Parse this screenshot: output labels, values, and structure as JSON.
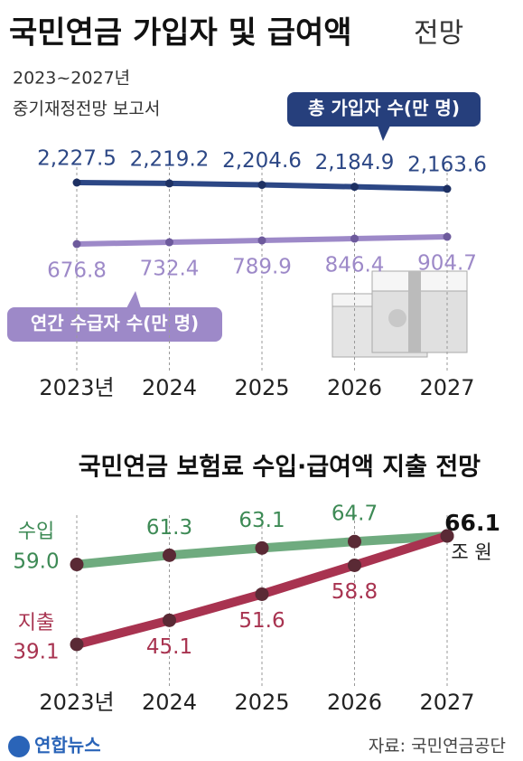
{
  "header": {
    "title": "국민연금 가입자 및 급여액",
    "title_suffix": "전망",
    "subtitle": [
      "2023~2027년",
      "중기재정전망 보고서"
    ]
  },
  "chart_data": [
    {
      "type": "line",
      "categories": [
        "2023년",
        "2024",
        "2025",
        "2026",
        "2027"
      ],
      "series": [
        {
          "name": "총 가입자 수(만 명)",
          "color": "#2c4785",
          "values": [
            2227.5,
            2219.2,
            2204.6,
            2184.9,
            2163.6
          ],
          "value_labels": [
            "2,227.5",
            "2,219.2",
            "2,204.6",
            "2,184.9",
            "2,163.6"
          ]
        },
        {
          "name": "연간 수급자 수(만 명)",
          "color": "#9d89c8",
          "values": [
            676.8,
            732.4,
            789.9,
            846.4,
            904.7
          ]
        }
      ]
    },
    {
      "type": "line",
      "title": "국민연금 보험료 수입·급여액 지출 전망",
      "unit": "조 원",
      "categories": [
        "2023년",
        "2024",
        "2025",
        "2026",
        "2027"
      ],
      "series": [
        {
          "name": "수입",
          "color": "#6fab7f",
          "values": [
            59.0,
            61.3,
            63.1,
            64.7,
            66.1
          ],
          "value_labels": [
            "59.0",
            "61.3",
            "63.1",
            "64.7",
            "66.1"
          ]
        },
        {
          "name": "지출",
          "color": "#a83350",
          "values": [
            39.1,
            45.1,
            51.6,
            58.8,
            66.1
          ],
          "value_labels": [
            "39.1",
            "45.1",
            "51.6",
            "58.8",
            null
          ]
        }
      ]
    }
  ],
  "footer": {
    "logo": "연합뉴스",
    "source": "자료: 국민연금공단"
  }
}
